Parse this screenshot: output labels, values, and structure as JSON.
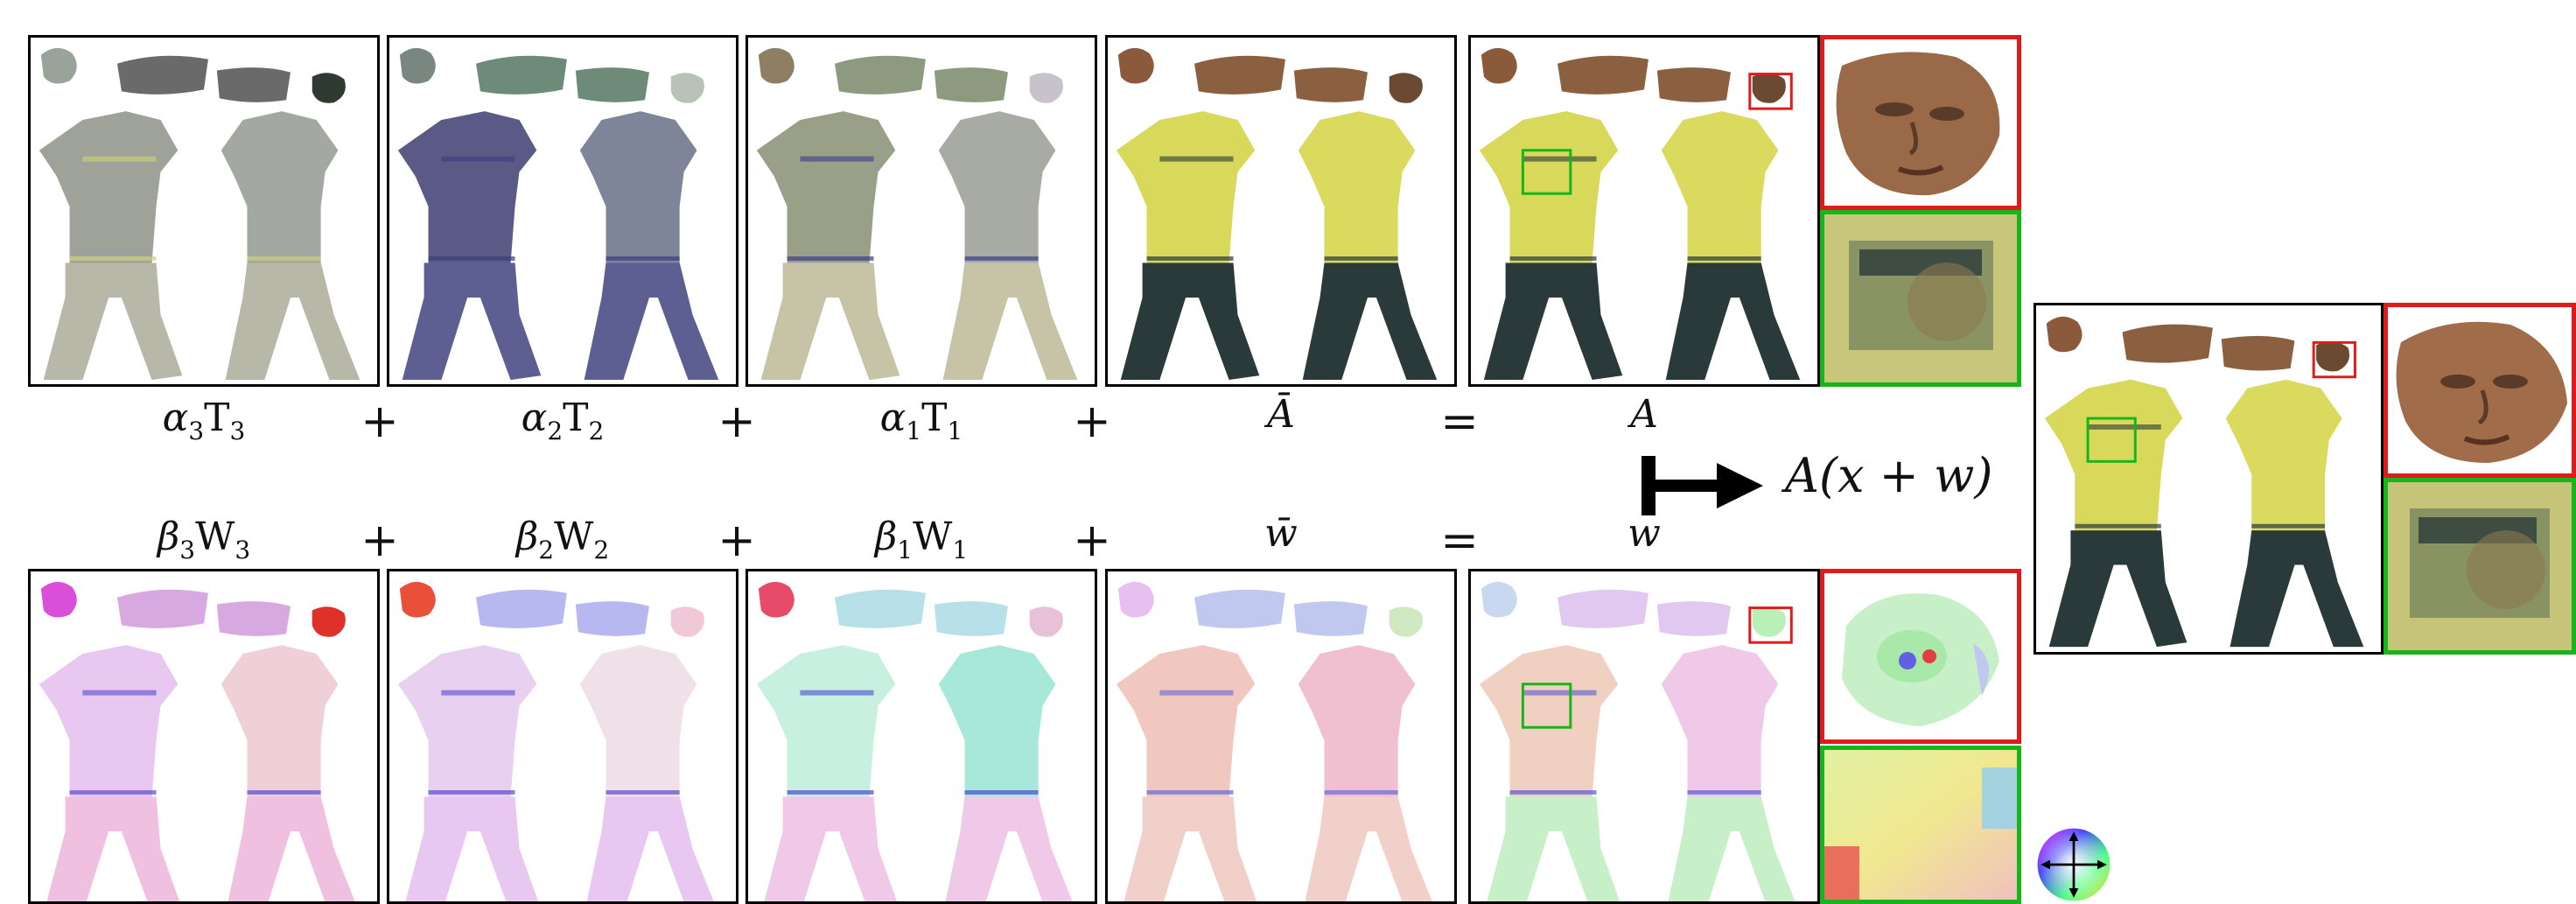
{
  "top_row": {
    "labels": [
      {
        "coef": "α",
        "idx": "3",
        "basis": "T",
        "bidx": "3"
      },
      {
        "coef": "α",
        "idx": "2",
        "basis": "T",
        "bidx": "2"
      },
      {
        "coef": "α",
        "idx": "1",
        "basis": "T",
        "bidx": "1"
      },
      {
        "text": "Ā"
      },
      {
        "text": "A"
      }
    ],
    "operators": [
      "+",
      "+",
      "+",
      "="
    ]
  },
  "bottom_row": {
    "labels": [
      {
        "coef": "β",
        "idx": "3",
        "basis": "W",
        "bidx": "3"
      },
      {
        "coef": "β",
        "idx": "2",
        "basis": "W",
        "bidx": "2"
      },
      {
        "coef": "β",
        "idx": "1",
        "basis": "W",
        "bidx": "1"
      },
      {
        "text": "w̄"
      },
      {
        "text": "w"
      }
    ],
    "operators": [
      "+",
      "+",
      "+",
      "="
    ]
  },
  "result_label": "A(x + w)",
  "colors": {
    "zoom_face": "#e01b1b",
    "zoom_torso": "#17b51b",
    "shirt": "#d8d85a",
    "jeans": "#2a3a3a",
    "skin": "#8a5a3a"
  },
  "icons": {
    "maps_to": "maps-to-arrow-icon",
    "flow_wheel": "color-wheel-icon"
  }
}
